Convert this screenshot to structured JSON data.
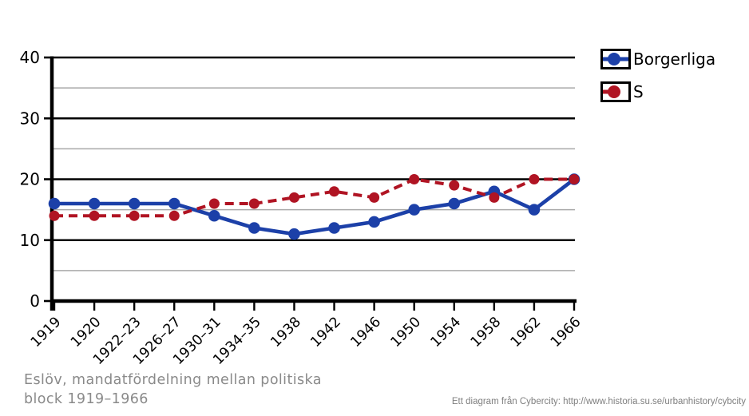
{
  "chart_data": {
    "type": "line",
    "title": "",
    "xlabel": "",
    "ylabel": "",
    "categories": [
      "1919",
      "1920",
      "1922–23",
      "1926–27",
      "1930–31",
      "1934–35",
      "1938",
      "1942",
      "1946",
      "1950",
      "1954",
      "1958",
      "1962",
      "1966"
    ],
    "series": [
      {
        "name": "Borgerliga",
        "color": "#1C40A8",
        "line_style": "solid",
        "values": [
          16,
          16,
          16,
          16,
          14,
          12,
          11,
          12,
          13,
          15,
          16,
          18,
          15,
          20
        ]
      },
      {
        "name": "S",
        "color": "#B01423",
        "line_style": "dashed",
        "values": [
          14,
          14,
          14,
          14,
          16,
          16,
          17,
          18,
          17,
          20,
          19,
          17,
          20,
          20
        ]
      }
    ],
    "ylim": [
      0,
      40
    ],
    "yticks_major": [
      0,
      10,
      20,
      30,
      40
    ],
    "yticks_minor": [
      5,
      15,
      25,
      35
    ],
    "grid": true,
    "legend_position": "top-right"
  },
  "caption": {
    "title": "Eslöv, mandatfördelning  mellan politiska\nblock 1919–1966"
  },
  "credit": {
    "text": "Ett diagram från Cybercity: http://www.historia.su.se/urbanhistory/cybcity"
  },
  "colors": {
    "axis": "#000000",
    "major_grid": "#000000",
    "minor_grid": "#A9A9A9",
    "tick_label": "#000000",
    "caption_text": "#8A8A8A",
    "credit_text": "#7F7F7F",
    "background": "#FFFFFF"
  }
}
